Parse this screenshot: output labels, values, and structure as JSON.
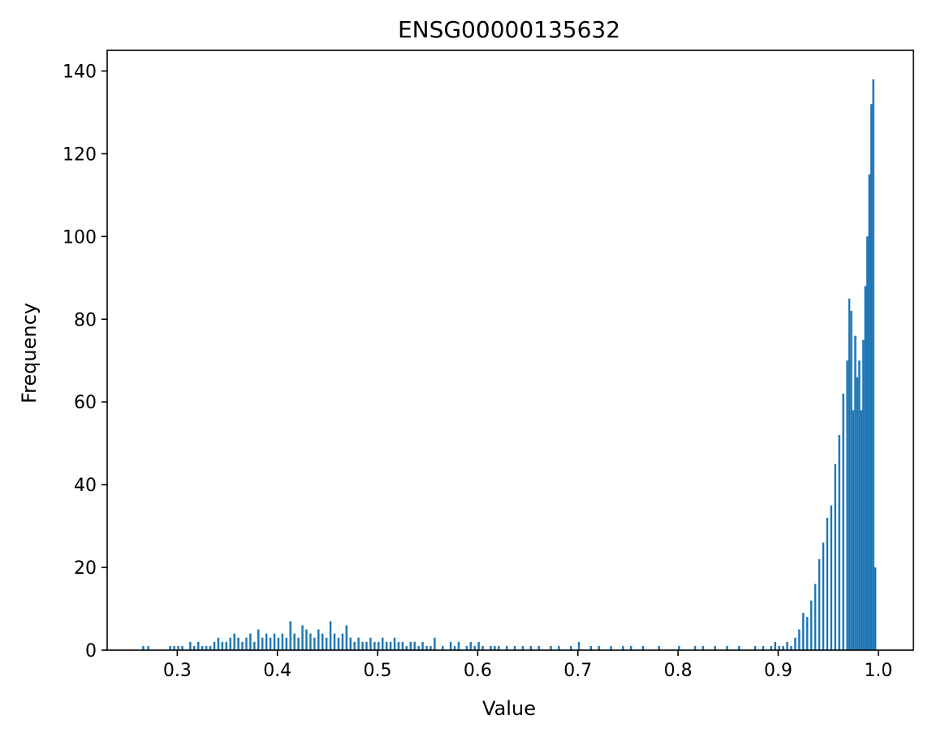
{
  "chart_data": {
    "type": "bar",
    "title": "ENSG00000135632",
    "xlabel": "Value",
    "ylabel": "Frequency",
    "xlim": [
      0.23,
      1.035
    ],
    "ylim": [
      0,
      145
    ],
    "xticks": [
      0.3,
      0.4,
      0.5,
      0.6,
      0.7,
      0.8,
      0.9,
      1.0
    ],
    "xtick_labels": [
      "0.3",
      "0.4",
      "0.5",
      "0.6",
      "0.7",
      "0.8",
      "0.9",
      "1.0"
    ],
    "yticks": [
      0,
      20,
      40,
      60,
      80,
      100,
      120,
      140
    ],
    "ytick_labels": [
      "0",
      "20",
      "40",
      "60",
      "80",
      "100",
      "120",
      "140"
    ],
    "grid": false,
    "bar_color": "#1f77b4",
    "series": [
      {
        "bins": [
          [
            0.265,
            1
          ],
          [
            0.27,
            1
          ],
          [
            0.292,
            1
          ],
          [
            0.296,
            1
          ],
          [
            0.3,
            1
          ],
          [
            0.304,
            1
          ],
          [
            0.312,
            2
          ],
          [
            0.316,
            1
          ],
          [
            0.32,
            2
          ],
          [
            0.324,
            1
          ],
          [
            0.328,
            1
          ],
          [
            0.332,
            1
          ],
          [
            0.336,
            2
          ],
          [
            0.34,
            3
          ],
          [
            0.344,
            2
          ],
          [
            0.348,
            2
          ],
          [
            0.352,
            3
          ],
          [
            0.356,
            4
          ],
          [
            0.36,
            3
          ],
          [
            0.364,
            2
          ],
          [
            0.368,
            3
          ],
          [
            0.372,
            4
          ],
          [
            0.376,
            2
          ],
          [
            0.38,
            5
          ],
          [
            0.384,
            3
          ],
          [
            0.388,
            4
          ],
          [
            0.392,
            3
          ],
          [
            0.396,
            4
          ],
          [
            0.4,
            3
          ],
          [
            0.404,
            4
          ],
          [
            0.408,
            3
          ],
          [
            0.412,
            7
          ],
          [
            0.416,
            4
          ],
          [
            0.42,
            3
          ],
          [
            0.424,
            6
          ],
          [
            0.428,
            5
          ],
          [
            0.432,
            4
          ],
          [
            0.436,
            3
          ],
          [
            0.44,
            5
          ],
          [
            0.444,
            4
          ],
          [
            0.448,
            3
          ],
          [
            0.452,
            7
          ],
          [
            0.456,
            4
          ],
          [
            0.46,
            3
          ],
          [
            0.464,
            4
          ],
          [
            0.468,
            6
          ],
          [
            0.472,
            3
          ],
          [
            0.476,
            2
          ],
          [
            0.48,
            3
          ],
          [
            0.484,
            2
          ],
          [
            0.488,
            2
          ],
          [
            0.492,
            3
          ],
          [
            0.496,
            2
          ],
          [
            0.5,
            2
          ],
          [
            0.504,
            3
          ],
          [
            0.508,
            2
          ],
          [
            0.512,
            2
          ],
          [
            0.516,
            3
          ],
          [
            0.52,
            2
          ],
          [
            0.524,
            2
          ],
          [
            0.528,
            1
          ],
          [
            0.532,
            2
          ],
          [
            0.536,
            2
          ],
          [
            0.54,
            1
          ],
          [
            0.544,
            2
          ],
          [
            0.548,
            1
          ],
          [
            0.552,
            1
          ],
          [
            0.556,
            3
          ],
          [
            0.564,
            1
          ],
          [
            0.572,
            2
          ],
          [
            0.576,
            1
          ],
          [
            0.58,
            2
          ],
          [
            0.588,
            1
          ],
          [
            0.592,
            2
          ],
          [
            0.596,
            1
          ],
          [
            0.6,
            2
          ],
          [
            0.604,
            1
          ],
          [
            0.612,
            1
          ],
          [
            0.616,
            1
          ],
          [
            0.62,
            1
          ],
          [
            0.628,
            1
          ],
          [
            0.636,
            1
          ],
          [
            0.644,
            1
          ],
          [
            0.652,
            1
          ],
          [
            0.66,
            1
          ],
          [
            0.672,
            1
          ],
          [
            0.68,
            1
          ],
          [
            0.692,
            1
          ],
          [
            0.7,
            2
          ],
          [
            0.712,
            1
          ],
          [
            0.72,
            1
          ],
          [
            0.732,
            1
          ],
          [
            0.744,
            1
          ],
          [
            0.752,
            1
          ],
          [
            0.764,
            1
          ],
          [
            0.78,
            1
          ],
          [
            0.8,
            1
          ],
          [
            0.816,
            1
          ],
          [
            0.824,
            1
          ],
          [
            0.836,
            1
          ],
          [
            0.848,
            1
          ],
          [
            0.86,
            1
          ],
          [
            0.876,
            1
          ],
          [
            0.884,
            1
          ],
          [
            0.892,
            1
          ],
          [
            0.896,
            2
          ],
          [
            0.9,
            1
          ],
          [
            0.904,
            1
          ],
          [
            0.908,
            2
          ],
          [
            0.912,
            1
          ],
          [
            0.916,
            3
          ],
          [
            0.92,
            5
          ],
          [
            0.924,
            9
          ],
          [
            0.928,
            8
          ],
          [
            0.932,
            12
          ],
          [
            0.936,
            16
          ],
          [
            0.94,
            22
          ],
          [
            0.944,
            26
          ],
          [
            0.948,
            32
          ],
          [
            0.952,
            35
          ],
          [
            0.956,
            45
          ],
          [
            0.96,
            52
          ],
          [
            0.964,
            62
          ],
          [
            0.968,
            70
          ],
          [
            0.97,
            85
          ],
          [
            0.972,
            82
          ],
          [
            0.974,
            58
          ],
          [
            0.976,
            76
          ],
          [
            0.978,
            66
          ],
          [
            0.98,
            70
          ],
          [
            0.982,
            58
          ],
          [
            0.984,
            75
          ],
          [
            0.986,
            88
          ],
          [
            0.988,
            100
          ],
          [
            0.99,
            115
          ],
          [
            0.992,
            132
          ],
          [
            0.994,
            138
          ],
          [
            0.996,
            20
          ]
        ],
        "bin_width": 0.002
      }
    ]
  }
}
